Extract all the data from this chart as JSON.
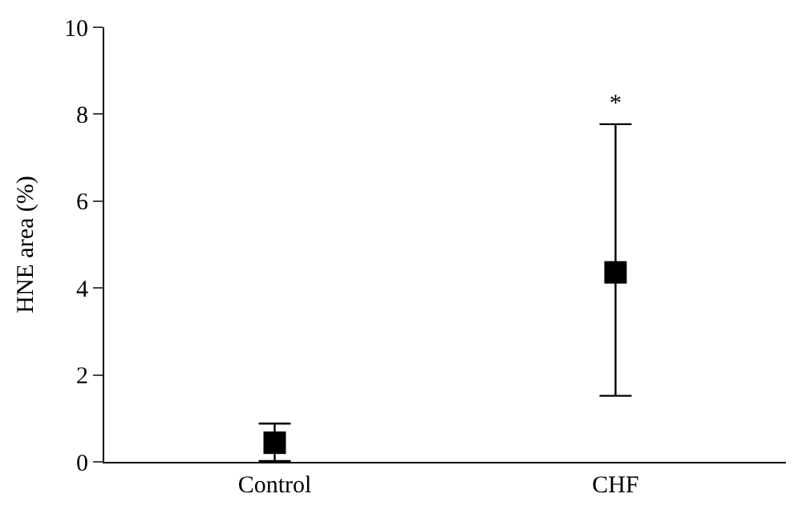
{
  "chart_data": {
    "type": "scatter",
    "ylabel": "HNE area (%)",
    "categories": [
      "Control",
      "CHF"
    ],
    "values": [
      0.44,
      4.36
    ],
    "errors": [
      [
        0.02,
        0.88
      ],
      [
        1.52,
        7.77
      ]
    ],
    "color": "#000000",
    "marker": "square",
    "ylim": [
      0,
      10
    ],
    "yticks": [
      0,
      2,
      4,
      6,
      8,
      10
    ],
    "legend": false,
    "annotations": [
      "*"
    ]
  }
}
